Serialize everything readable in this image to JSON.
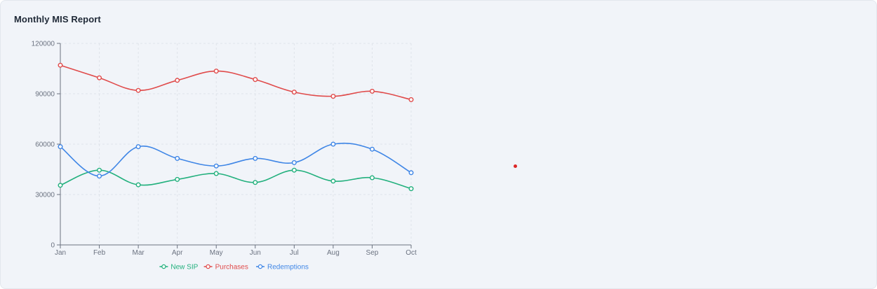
{
  "card": {
    "title": "Monthly MIS Report"
  },
  "colors": {
    "new_sip": "#22b07d",
    "purchases": "#e04b4b",
    "redemptions": "#3f86e6",
    "axis": "#6b7280",
    "grid": "#dfe3ea",
    "marker": "#dc2626"
  },
  "chart_data": {
    "type": "line",
    "title": "",
    "xlabel": "",
    "ylabel": "",
    "categories": [
      "Jan",
      "Feb",
      "Mar",
      "Apr",
      "May",
      "Jun",
      "Jul",
      "Aug",
      "Sep",
      "Oct"
    ],
    "ylim": [
      0,
      120000
    ],
    "yticks": [
      0,
      30000,
      60000,
      90000,
      120000
    ],
    "grid": true,
    "legend_position": "bottom",
    "series": [
      {
        "key": "new_sip",
        "name": "New SIP",
        "values": [
          35500,
          44500,
          35800,
          39000,
          42500,
          37200,
          44500,
          38000,
          40000,
          33500
        ]
      },
      {
        "key": "purchases",
        "name": "Purchases",
        "values": [
          107000,
          99500,
          92000,
          98000,
          103500,
          98500,
          91000,
          88500,
          91500,
          86500
        ]
      },
      {
        "key": "redemptions",
        "name": "Redemptions",
        "values": [
          58500,
          41000,
          58500,
          51500,
          47000,
          51500,
          49000,
          60000,
          57000,
          43000
        ]
      }
    ]
  }
}
